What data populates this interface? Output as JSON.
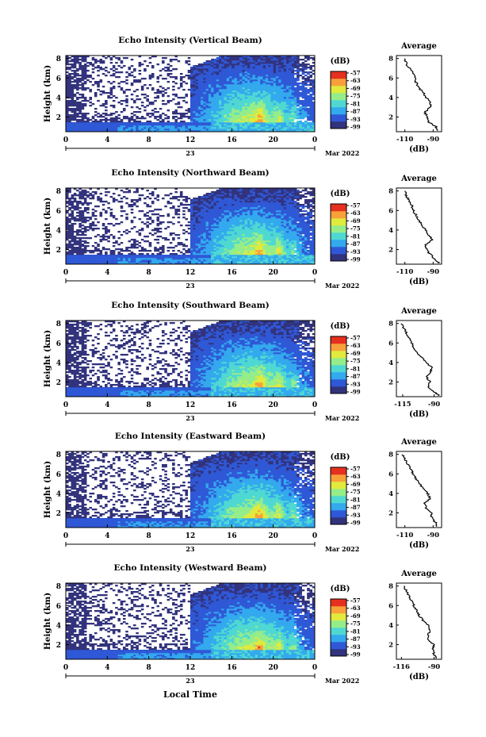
{
  "figure": {
    "date_label": "Mar 2022",
    "day_label": "23",
    "bottom_xlabel": "Local Time",
    "colorbar_unit": "(dB)",
    "colorbar_ticks": [
      "-57",
      "-63",
      "-69",
      "-75",
      "-81",
      "-87",
      "-93",
      "-99"
    ],
    "colorbar_colors": [
      "#32337d",
      "#2f58d6",
      "#33a9ee",
      "#4fd8d2",
      "#95ed8a",
      "#e1ea3d",
      "#f8a03a",
      "#e5301f"
    ],
    "heatmap_blank_color": "#ffffff",
    "heatmap_bg_color": "#3a3f86",
    "x_ticks": [
      "0",
      "4",
      "8",
      "12",
      "16",
      "20",
      "0"
    ],
    "y_ticks": [
      "2",
      "4",
      "6",
      "8"
    ],
    "y_label": "Height (km)",
    "avg_title": "Average",
    "avg_xlabel": "(dB)"
  },
  "chart_data": [
    {
      "type": "heatmap",
      "title": "Echo Intensity (Vertical Beam)",
      "ylabel": "Height (km)",
      "xlim": [
        0,
        24
      ],
      "ylim": [
        0.5,
        8.3
      ],
      "x_units": "local hour, 23 Mar 2022",
      "colorbar": {
        "label": "(dB)",
        "range": [
          -99,
          -57
        ]
      },
      "avg_profile": {
        "title": "Average",
        "xlabel": "(dB)",
        "xticks": [
          "-110",
          "-90"
        ],
        "xlim": [
          -116,
          -84
        ],
        "ylim": [
          0.5,
          8.3
        ],
        "y": [
          0.6,
          1.0,
          1.5,
          2.0,
          2.5,
          3.0,
          3.5,
          4.0,
          4.5,
          5.0,
          5.5,
          6.0,
          6.5,
          7.0,
          7.5,
          8.0
        ],
        "x": [
          -86,
          -88,
          -93,
          -94,
          -96,
          -92,
          -92,
          -95,
          -97,
          -100,
          -102,
          -103,
          -104,
          -107,
          -109,
          -110
        ]
      }
    },
    {
      "type": "heatmap",
      "title": "Echo Intensity (Northward Beam)",
      "ylabel": "Height (km)",
      "xlim": [
        0,
        24
      ],
      "ylim": [
        0.5,
        8.3
      ],
      "x_units": "local hour, 23 Mar 2022",
      "colorbar": {
        "label": "(dB)",
        "range": [
          -99,
          -57
        ]
      },
      "avg_profile": {
        "title": "Average",
        "xlabel": "(dB)",
        "xticks": [
          "-110",
          "-90"
        ],
        "xlim": [
          -116,
          -84
        ],
        "ylim": [
          0.5,
          8.3
        ],
        "y": [
          0.6,
          1.0,
          1.5,
          2.0,
          2.5,
          3.0,
          3.5,
          4.0,
          4.5,
          5.0,
          5.5,
          6.0,
          6.5,
          7.0,
          7.5,
          8.0
        ],
        "x": [
          -86,
          -89,
          -92,
          -95,
          -95,
          -91,
          -93,
          -95,
          -98,
          -100,
          -102,
          -104,
          -105,
          -107,
          -109,
          -110
        ]
      }
    },
    {
      "type": "heatmap",
      "title": "Echo Intensity (Southward Beam)",
      "ylabel": "Height (km)",
      "xlim": [
        0,
        24
      ],
      "ylim": [
        0.5,
        8.3
      ],
      "x_units": "local hour, 23 Mar 2022",
      "colorbar": {
        "label": "(dB)",
        "range": [
          -99,
          -57
        ]
      },
      "avg_profile": {
        "title": "Average",
        "xlabel": "(dB)",
        "xticks": [
          "-115",
          "-90"
        ],
        "xlim": [
          -120,
          -84
        ],
        "ylim": [
          0.5,
          8.3
        ],
        "y": [
          0.6,
          1.0,
          1.5,
          2.0,
          2.5,
          3.0,
          3.5,
          4.0,
          4.5,
          5.0,
          5.5,
          6.0,
          6.5,
          7.0,
          7.5,
          8.0
        ],
        "x": [
          -86,
          -90,
          -95,
          -93,
          -96,
          -93,
          -92,
          -96,
          -100,
          -103,
          -106,
          -108,
          -110,
          -112,
          -114,
          -116
        ]
      }
    },
    {
      "type": "heatmap",
      "title": "Echo Intensity (Eastward Beam)",
      "ylabel": "Height (km)",
      "xlim": [
        0,
        24
      ],
      "ylim": [
        0.5,
        8.3
      ],
      "x_units": "local hour, 23 Mar 2022",
      "colorbar": {
        "label": "(dB)",
        "range": [
          -99,
          -57
        ]
      },
      "avg_profile": {
        "title": "Average",
        "xlabel": "(dB)",
        "xticks": [
          "-110",
          "-90"
        ],
        "xlim": [
          -116,
          -84
        ],
        "ylim": [
          0.5,
          8.3
        ],
        "y": [
          0.6,
          1.0,
          1.5,
          2.0,
          2.5,
          3.0,
          3.5,
          4.0,
          4.5,
          5.0,
          5.5,
          6.0,
          6.5,
          7.0,
          7.5,
          8.0
        ],
        "x": [
          -87,
          -88,
          -91,
          -91,
          -95,
          -96,
          -92,
          -94,
          -97,
          -100,
          -102,
          -104,
          -106,
          -108,
          -110,
          -112
        ]
      }
    },
    {
      "type": "heatmap",
      "title": "Echo Intensity (Westward Beam)",
      "ylabel": "Height (km)",
      "xlim": [
        0,
        24
      ],
      "ylim": [
        0.5,
        8.3
      ],
      "x_units": "local hour, 23 Mar 2022",
      "colorbar": {
        "label": "(dB)",
        "range": [
          -99,
          -57
        ]
      },
      "avg_profile": {
        "title": "Average",
        "xlabel": "(dB)",
        "xticks": [
          "-116",
          "-90"
        ],
        "xlim": [
          -120,
          -84
        ],
        "ylim": [
          0.5,
          8.3
        ],
        "y": [
          0.6,
          1.0,
          1.5,
          2.0,
          2.5,
          3.0,
          3.5,
          4.0,
          4.5,
          5.0,
          5.5,
          6.0,
          6.5,
          7.0,
          7.5,
          8.0
        ],
        "x": [
          -88,
          -90,
          -91,
          -90,
          -95,
          -95,
          -93,
          -95,
          -99,
          -102,
          -104,
          -106,
          -108,
          -110,
          -112,
          -114
        ]
      }
    }
  ]
}
